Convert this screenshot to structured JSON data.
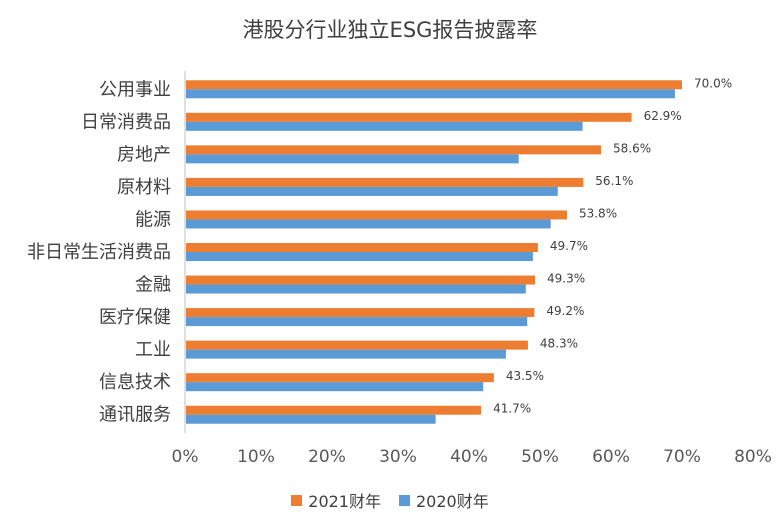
{
  "chart_data": {
    "type": "bar",
    "orientation": "horizontal",
    "title": "港股分行业独立ESG报告披露率",
    "categories": [
      "公用事业",
      "日常消费品",
      "房地产",
      "原材料",
      "能源",
      "非日常生活消费品",
      "金融",
      "医疗保健",
      "工业",
      "信息技术",
      "通讯服务"
    ],
    "series": [
      {
        "name": "2021财年",
        "color": "#ED7D31",
        "values": [
          70.0,
          62.9,
          58.6,
          56.1,
          53.8,
          49.7,
          49.3,
          49.2,
          48.3,
          43.5,
          41.7
        ],
        "labels": [
          "70.0%",
          "62.9%",
          "58.6%",
          "56.1%",
          "53.8%",
          "49.7%",
          "49.3%",
          "49.2%",
          "48.3%",
          "43.5%",
          "41.7%"
        ]
      },
      {
        "name": "2020财年",
        "color": "#5B9BD5",
        "values": [
          69,
          56,
          47,
          52.5,
          51.5,
          49,
          48,
          48.2,
          45.2,
          42,
          35.3
        ]
      }
    ],
    "xlim": [
      0,
      80
    ],
    "xticks": [
      0,
      10,
      20,
      30,
      40,
      50,
      60,
      70,
      80
    ],
    "xtick_labels": [
      "0%",
      "10%",
      "20%",
      "30%",
      "40%",
      "50%",
      "60%",
      "70%",
      "80%"
    ],
    "legend_position": "bottom",
    "grid": false
  }
}
